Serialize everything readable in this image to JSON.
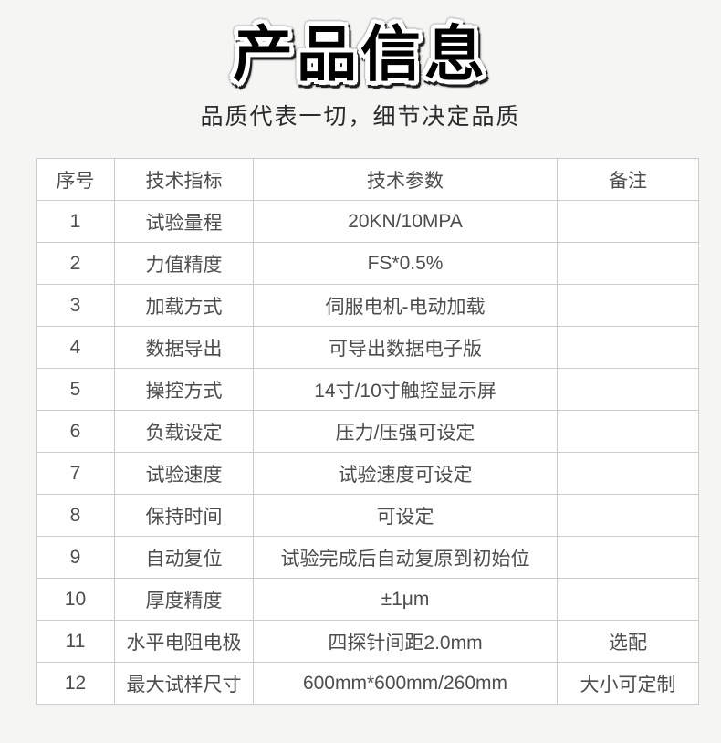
{
  "header": {
    "title": "产品信息",
    "subtitle": "品质代表一切，细节决定品质"
  },
  "table": {
    "columns": [
      "序号",
      "技术指标",
      "技术参数",
      "备注"
    ],
    "rows": [
      {
        "no": "1",
        "indicator": "试验量程",
        "parameter": "20KN/10MPA",
        "note": ""
      },
      {
        "no": "2",
        "indicator": "力值精度",
        "parameter": "FS*0.5%",
        "note": ""
      },
      {
        "no": "3",
        "indicator": "加载方式",
        "parameter": "伺服电机-电动加载",
        "note": ""
      },
      {
        "no": "4",
        "indicator": "数据导出",
        "parameter": "可导出数据电子版",
        "note": ""
      },
      {
        "no": "5",
        "indicator": "操控方式",
        "parameter": "14寸/10寸触控显示屏",
        "note": ""
      },
      {
        "no": "6",
        "indicator": "负载设定",
        "parameter": "压力/压强可设定",
        "note": ""
      },
      {
        "no": "7",
        "indicator": "试验速度",
        "parameter": "试验速度可设定",
        "note": ""
      },
      {
        "no": "8",
        "indicator": "保持时间",
        "parameter": "可设定",
        "note": ""
      },
      {
        "no": "9",
        "indicator": "自动复位",
        "parameter": "试验完成后自动复原到初始位",
        "note": ""
      },
      {
        "no": "10",
        "indicator": "厚度精度",
        "parameter": "±1μm",
        "note": ""
      },
      {
        "no": "11",
        "indicator": "水平电阻电极",
        "parameter": "四探针间距2.0mm",
        "note": "选配"
      },
      {
        "no": "12",
        "indicator": "最大试样尺寸",
        "parameter": "600mm*600mm/260mm",
        "note": "大小可定制"
      }
    ]
  }
}
